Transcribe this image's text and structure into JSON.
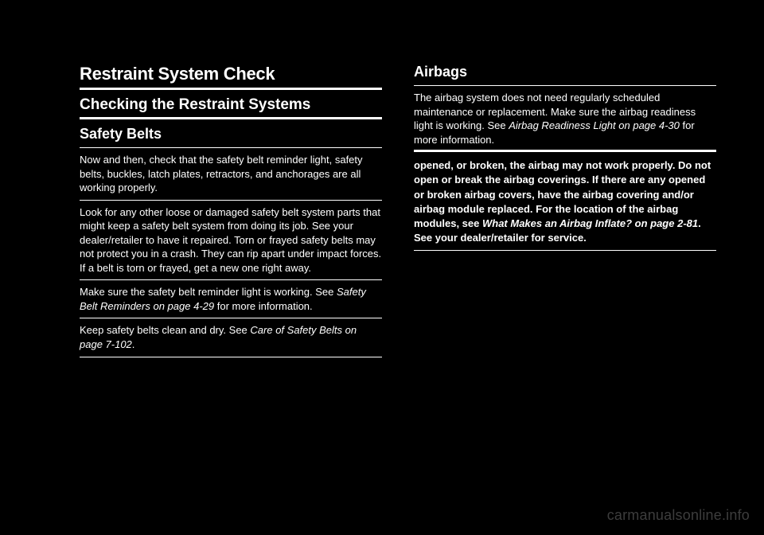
{
  "left": {
    "h1": "Restraint System Check",
    "h2": "Checking the Restraint Systems",
    "h3": "Safety Belts",
    "p1": "Now and then, check that the safety belt reminder light, safety belts, buckles, latch plates, retractors, and anchorages are all working properly.",
    "p2": "Look for any other loose or damaged safety belt system parts that might keep a safety belt system from doing its job. See your dealer/retailer to have it repaired. Torn or frayed safety belts may not protect you in a crash. They can rip apart under impact forces. If a belt is torn or frayed, get a new one right away.",
    "p3_pre": "Make sure the safety belt reminder light is working. See ",
    "p3_ref": "Safety Belt Reminders on page 4‑29",
    "p3_post": " for more information.",
    "p4_pre": "Keep safety belts clean and dry. See ",
    "p4_ref": "Care of Safety Belts on page 7‑102",
    "p4_post": "."
  },
  "right": {
    "h3": "Airbags",
    "p1_pre": "The airbag system does not need regularly scheduled maintenance or replacement. Make sure the airbag readiness light is working. See ",
    "p1_ref": "Airbag Readiness Light on page 4‑30",
    "p1_post": " for more information.",
    "p2_pre": "opened, or broken, the airbag may not work properly. Do not open or break the airbag coverings. If there are any opened or broken airbag covers, have the airbag covering and/or airbag module replaced. For the location of the airbag modules, see ",
    "p2_ref": "What Makes an Airbag Inflate? on page 2‑81",
    "p2_post": ". See your dealer/retailer for service."
  },
  "watermark": "carmanualsonline.info",
  "colors": {
    "background": "#000000",
    "text": "#ffffff",
    "rule": "#ffffff",
    "watermark": "#3d3d3d"
  }
}
